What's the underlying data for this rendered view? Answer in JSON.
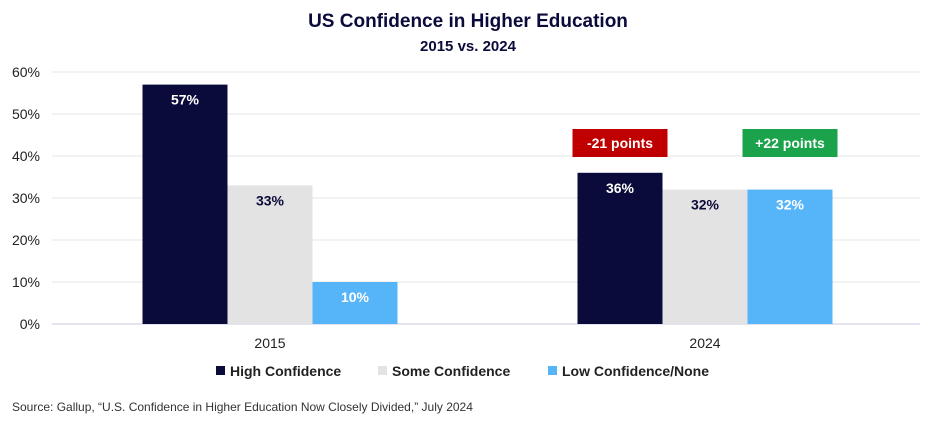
{
  "chart_data": {
    "type": "bar",
    "title": "US Confidence in Higher Education",
    "subtitle": "2015 vs. 2024",
    "categories": [
      "2015",
      "2024"
    ],
    "series": [
      {
        "name": "High Confidence",
        "values": [
          57,
          36
        ],
        "labels": [
          "57%",
          "36%"
        ],
        "color": "#0b0b3b",
        "label_color": "#ffffff"
      },
      {
        "name": "Some Confidence",
        "values": [
          33,
          32
        ],
        "labels": [
          "33%",
          "32%"
        ],
        "color": "#e3e3e3",
        "label_color": "#0b0b3b"
      },
      {
        "name": "Low Confidence/None",
        "values": [
          10,
          32
        ],
        "labels": [
          "10%",
          "32%"
        ],
        "color": "#56b4f9",
        "label_color": "#ffffff"
      }
    ],
    "ylim": [
      0,
      60
    ],
    "yticks": [
      0,
      10,
      20,
      30,
      40,
      50,
      60
    ],
    "ytick_labels": [
      "0%",
      "10%",
      "20%",
      "30%",
      "40%",
      "50%",
      "60%"
    ],
    "grid": true,
    "legend_position": "bottom",
    "annotations": [
      {
        "text": "-21 points",
        "category": "2024",
        "series": "High Confidence",
        "color": "#c00000"
      },
      {
        "text": "+22 points",
        "category": "2024",
        "series": "Low Confidence/None",
        "color": "#1aa34a"
      }
    ]
  },
  "source": "Source: Gallup, “U.S. Confidence in Higher Education Now Closely Divided,” July 2024"
}
